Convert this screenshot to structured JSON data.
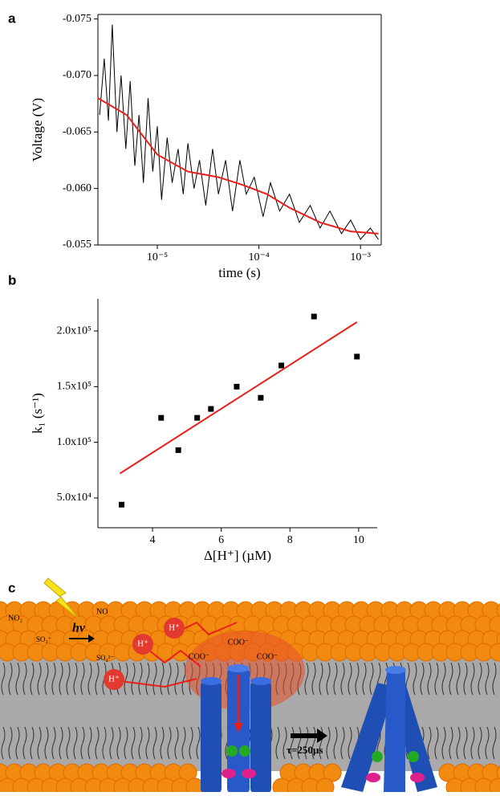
{
  "panels": {
    "a": "a",
    "b": "b",
    "c": "c"
  },
  "chart_data": [
    {
      "type": "line",
      "x_label": "time (s)",
      "y_label": "Voltage (V)",
      "xscale": "log",
      "box": true,
      "xlim": [
        2.6e-06,
        0.0016
      ],
      "ylim": [
        -0.055,
        -0.0754
      ],
      "xticks": [
        {
          "value": 1e-05,
          "label": "10⁻⁵"
        },
        {
          "value": 0.0001,
          "label": "10⁻⁴"
        },
        {
          "value": 0.001,
          "label": "10⁻³"
        }
      ],
      "yticks": [
        -0.055,
        {
          "value": -0.06,
          "label": "-0.060"
        },
        -0.065,
        {
          "value": -0.07,
          "label": "-0.070"
        },
        -0.075
      ],
      "series": [
        {
          "color": "#000000",
          "width": 1,
          "x": [
            2.7e-06,
            3e-06,
            3.3e-06,
            3.6e-06,
            4e-06,
            4.4e-06,
            4.9e-06,
            5.4e-06,
            6e-06,
            6.6e-06,
            7.3e-06,
            8.1e-06,
            9e-06,
            1e-05,
            1.1e-05,
            1.25e-05,
            1.4e-05,
            1.6e-05,
            1.8e-05,
            2e-05,
            2.3e-05,
            2.6e-05,
            3e-05,
            3.5e-05,
            4e-05,
            4.7e-05,
            5.5e-05,
            6.5e-05,
            7.5e-05,
            9e-05,
            0.00011,
            0.00013,
            0.00016,
            0.0002,
            0.00025,
            0.00032,
            0.0004,
            0.0005,
            0.00065,
            0.0008,
            0.001,
            0.00125,
            0.0015
          ],
          "values": [
            -0.0665,
            -0.0715,
            -0.066,
            -0.0745,
            -0.065,
            -0.07,
            -0.0635,
            -0.0695,
            -0.062,
            -0.0665,
            -0.0605,
            -0.068,
            -0.0615,
            -0.0655,
            -0.059,
            -0.0645,
            -0.0605,
            -0.0635,
            -0.0595,
            -0.064,
            -0.06,
            -0.0625,
            -0.0585,
            -0.0635,
            -0.0595,
            -0.0625,
            -0.058,
            -0.0625,
            -0.0595,
            -0.061,
            -0.0575,
            -0.0605,
            -0.058,
            -0.0595,
            -0.057,
            -0.0585,
            -0.0565,
            -0.058,
            -0.056,
            -0.0572,
            -0.0555,
            -0.0565,
            -0.0555
          ]
        },
        {
          "color": "#e8201c",
          "width": 2,
          "x": [
            2.6e-06,
            5e-06,
            1e-05,
            2e-05,
            4e-05,
            7e-05,
            0.00012,
            0.0002,
            0.0004,
            0.0008,
            0.0015
          ],
          "values": [
            -0.068,
            -0.0665,
            -0.063,
            -0.0615,
            -0.061,
            -0.0603,
            -0.0595,
            -0.0583,
            -0.057,
            -0.0562,
            -0.056
          ]
        }
      ]
    },
    {
      "type": "scatter",
      "x_label": "Δ[H⁺] (µM)",
      "y_label": "k₁ (s⁻¹)",
      "box": false,
      "xlim": [
        2.41,
        10.54
      ],
      "ylim": [
        23300,
        228900
      ],
      "xticks": [
        4,
        6,
        8,
        10
      ],
      "yticks": [
        {
          "value": 50000,
          "label": "5.0x10⁴"
        },
        {
          "value": 100000,
          "label": "1.0x10⁵"
        },
        {
          "value": 150000,
          "label": "1.5x10⁵"
        },
        {
          "value": 200000,
          "label": "2.0x10⁵"
        }
      ],
      "series": [
        {
          "mode": "markers",
          "color": "#000000",
          "x": [
            3.1,
            4.25,
            4.75,
            5.3,
            5.7,
            6.45,
            7.15,
            7.75,
            8.7,
            9.95
          ],
          "values": [
            44000,
            122000,
            93000,
            122000,
            130000,
            150000,
            140000,
            169000,
            213000,
            177000
          ]
        },
        {
          "mode": "line",
          "color": "#e8201c",
          "x": [
            3.05,
            9.95
          ],
          "values": [
            72000,
            208000
          ]
        }
      ]
    }
  ],
  "panel_c": {
    "light": "hν",
    "proton_1": "H⁺",
    "proton_2": "H⁺",
    "proton_3": "H⁺",
    "coo_1": "COO⁻",
    "coo_2": "COO⁻",
    "coo_3": "COO⁻",
    "no2": "NO₂",
    "no": "NO",
    "so3": "SO₃⁻",
    "so4": "SO₄²⁻",
    "time": "τ=250µs"
  }
}
